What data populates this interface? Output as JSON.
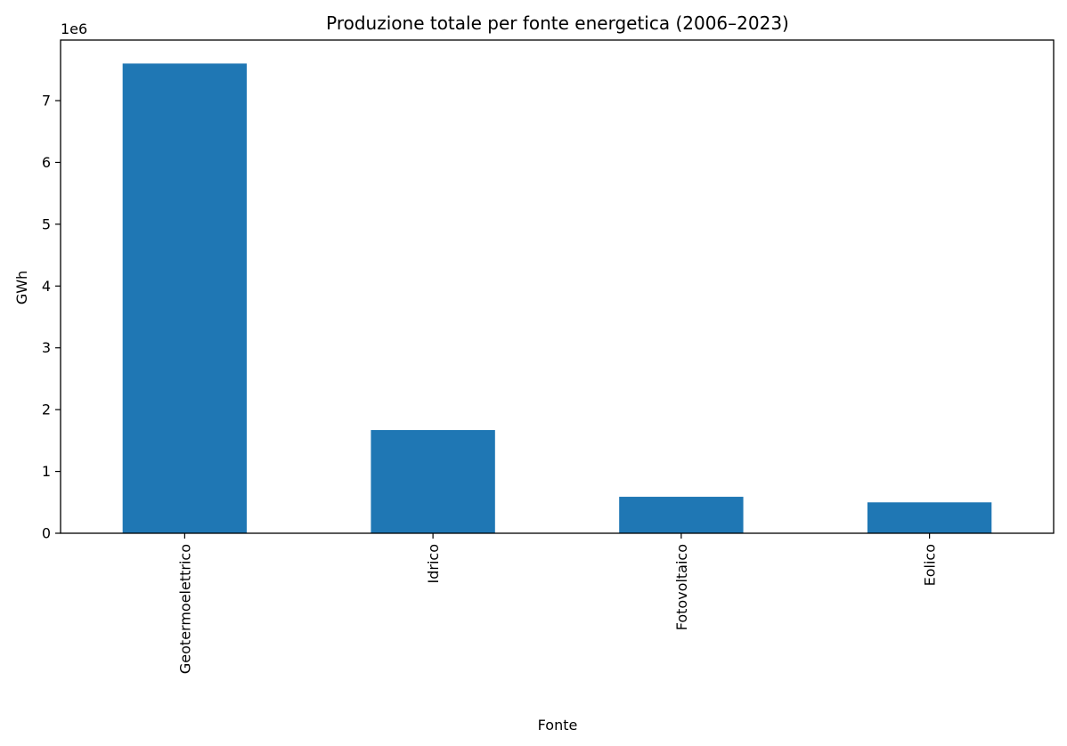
{
  "chart_data": {
    "type": "bar",
    "title": "Produzione totale per fonte energetica (2006–2023)",
    "xlabel": "Fonte",
    "ylabel": "GWh",
    "offset_label": "1e6",
    "categories": [
      "Geotermoelettrico",
      "Idrico",
      "Fotovoltaico",
      "Eolico"
    ],
    "values": [
      7600000,
      1670000,
      590000,
      500000
    ],
    "ylim": [
      0,
      7980000
    ],
    "yticks": [
      0,
      1000000,
      2000000,
      3000000,
      4000000,
      5000000,
      6000000,
      7000000
    ],
    "ytick_labels": [
      "0",
      "1",
      "2",
      "3",
      "4",
      "5",
      "6",
      "7"
    ],
    "bar_color": "#1f77b4",
    "grid": false,
    "legend": false
  }
}
